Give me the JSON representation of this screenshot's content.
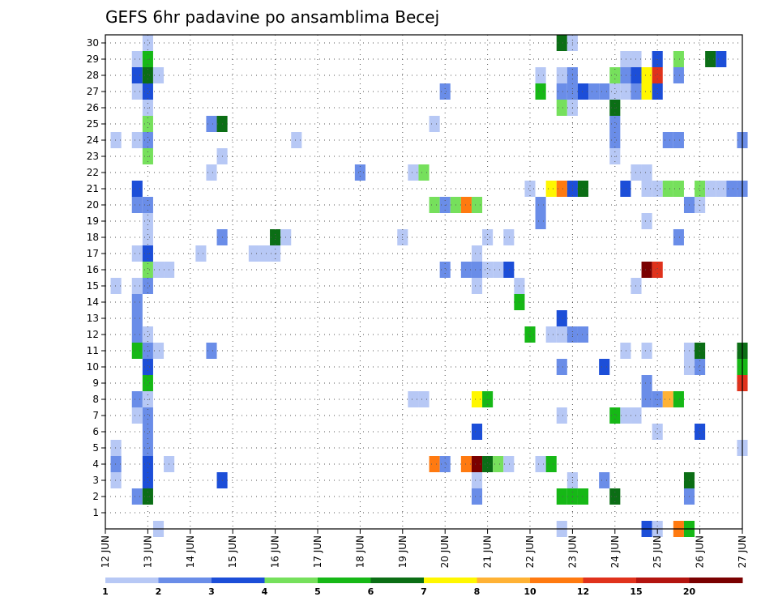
{
  "chart_data": {
    "type": "heatmap",
    "title": "GEFS 6hr padavine po ansamblima Becej",
    "xlabel": "",
    "ylabel": "",
    "x_ticks": [
      "12 JUN",
      "13 JUN",
      "14 JUN",
      "15 JUN",
      "16 JUN",
      "17 JUN",
      "18 JUN",
      "19 JUN",
      "20 JUN",
      "21 JUN",
      "22 JUN",
      "23 JUN",
      "24 JUN",
      "25 JUN",
      "26 JUN",
      "27 JUN"
    ],
    "x_range_days": [
      12,
      27
    ],
    "y_ticks": [
      1,
      2,
      3,
      4,
      5,
      6,
      7,
      8,
      9,
      10,
      11,
      12,
      13,
      14,
      15,
      16,
      17,
      18,
      19,
      20,
      21,
      22,
      23,
      24,
      25,
      26,
      27,
      28,
      29,
      30
    ],
    "y_range": [
      0,
      30
    ],
    "grid": true,
    "colorbar": {
      "labels": [
        "1",
        "2",
        "3",
        "4",
        "5",
        "6",
        "7",
        "8",
        "10",
        "12",
        "15",
        "20"
      ],
      "colors": [
        "#b7c8f5",
        "#6a8de8",
        "#1c4ed8",
        "#76e05c",
        "#16b816",
        "#0b6e15",
        "#fff700",
        "#ffb235",
        "#ff7a10",
        "#e0321c",
        "#b3140f",
        "#7a0000"
      ]
    },
    "note_values": "cell value = colorbar class index 0-11 (0 = 1-2 mm ... 11 = >20 mm); x = day of June (6-hourly steps), y = ensemble member",
    "cells": [
      [
        13.25,
        0,
        0
      ],
      [
        22.75,
        0,
        0
      ],
      [
        24.75,
        0,
        2
      ],
      [
        25.0,
        0,
        0
      ],
      [
        25.5,
        0,
        8
      ],
      [
        25.75,
        0,
        4
      ],
      [
        12.75,
        2,
        1
      ],
      [
        13.0,
        2,
        5
      ],
      [
        20.75,
        2,
        1
      ],
      [
        22.75,
        2,
        4
      ],
      [
        23.0,
        2,
        4
      ],
      [
        23.25,
        2,
        4
      ],
      [
        24.0,
        2,
        5
      ],
      [
        25.75,
        2,
        1
      ],
      [
        12.25,
        3,
        0
      ],
      [
        13.0,
        3,
        2
      ],
      [
        14.75,
        3,
        2
      ],
      [
        20.75,
        3,
        0
      ],
      [
        23.0,
        3,
        0
      ],
      [
        23.75,
        3,
        1
      ],
      [
        25.75,
        3,
        5
      ],
      [
        12.25,
        4,
        1
      ],
      [
        13.0,
        4,
        2
      ],
      [
        13.5,
        4,
        0
      ],
      [
        19.75,
        4,
        8
      ],
      [
        20.0,
        4,
        1
      ],
      [
        20.5,
        4,
        8
      ],
      [
        20.75,
        4,
        11
      ],
      [
        21.0,
        4,
        5
      ],
      [
        21.25,
        4,
        3
      ],
      [
        21.5,
        4,
        0
      ],
      [
        22.25,
        4,
        0
      ],
      [
        22.5,
        4,
        4
      ],
      [
        12.25,
        5,
        0
      ],
      [
        13.0,
        5,
        1
      ],
      [
        27.0,
        5,
        0
      ],
      [
        13.0,
        6,
        1
      ],
      [
        20.75,
        6,
        2
      ],
      [
        25.0,
        6,
        0
      ],
      [
        26.0,
        6,
        2
      ],
      [
        12.75,
        7,
        0
      ],
      [
        13.0,
        7,
        1
      ],
      [
        22.75,
        7,
        0
      ],
      [
        24.0,
        7,
        4
      ],
      [
        24.25,
        7,
        0
      ],
      [
        24.5,
        7,
        0
      ],
      [
        12.75,
        8,
        1
      ],
      [
        13.0,
        8,
        0
      ],
      [
        19.25,
        8,
        0
      ],
      [
        19.5,
        8,
        0
      ],
      [
        20.75,
        8,
        6
      ],
      [
        21.0,
        8,
        4
      ],
      [
        24.75,
        8,
        1
      ],
      [
        25.0,
        8,
        1
      ],
      [
        25.25,
        8,
        7
      ],
      [
        25.5,
        8,
        4
      ],
      [
        13.0,
        9,
        4
      ],
      [
        24.75,
        9,
        1
      ],
      [
        27.0,
        9,
        9
      ],
      [
        13.0,
        10,
        2
      ],
      [
        22.75,
        10,
        1
      ],
      [
        23.75,
        10,
        2
      ],
      [
        25.75,
        10,
        0
      ],
      [
        26.0,
        10,
        1
      ],
      [
        27.0,
        10,
        4
      ],
      [
        12.75,
        11,
        4
      ],
      [
        13.0,
        11,
        1
      ],
      [
        13.25,
        11,
        0
      ],
      [
        14.5,
        11,
        1
      ],
      [
        24.25,
        11,
        0
      ],
      [
        24.75,
        11,
        0
      ],
      [
        25.75,
        11,
        0
      ],
      [
        26.0,
        11,
        5
      ],
      [
        27.0,
        11,
        5
      ],
      [
        12.75,
        12,
        1
      ],
      [
        13.0,
        12,
        0
      ],
      [
        22.0,
        12,
        4
      ],
      [
        22.5,
        12,
        0
      ],
      [
        22.75,
        12,
        0
      ],
      [
        23.0,
        12,
        1
      ],
      [
        23.25,
        12,
        1
      ],
      [
        12.75,
        13,
        1
      ],
      [
        22.75,
        13,
        2
      ],
      [
        12.75,
        14,
        1
      ],
      [
        21.75,
        14,
        4
      ],
      [
        12.25,
        15,
        0
      ],
      [
        12.75,
        15,
        0
      ],
      [
        13.0,
        15,
        1
      ],
      [
        20.75,
        15,
        0
      ],
      [
        21.75,
        15,
        0
      ],
      [
        24.5,
        15,
        0
      ],
      [
        13.0,
        16,
        3
      ],
      [
        13.25,
        16,
        0
      ],
      [
        13.5,
        16,
        0
      ],
      [
        20.0,
        16,
        1
      ],
      [
        20.5,
        16,
        1
      ],
      [
        20.75,
        16,
        1
      ],
      [
        21.0,
        16,
        0
      ],
      [
        21.25,
        16,
        0
      ],
      [
        21.5,
        16,
        2
      ],
      [
        24.75,
        16,
        11
      ],
      [
        25.0,
        16,
        9
      ],
      [
        12.75,
        17,
        0
      ],
      [
        13.0,
        17,
        2
      ],
      [
        14.25,
        17,
        0
      ],
      [
        15.5,
        17,
        0
      ],
      [
        15.75,
        17,
        0
      ],
      [
        16.0,
        17,
        0
      ],
      [
        20.75,
        17,
        0
      ],
      [
        13.0,
        18,
        0
      ],
      [
        14.75,
        18,
        1
      ],
      [
        16.0,
        18,
        5
      ],
      [
        16.25,
        18,
        0
      ],
      [
        19.0,
        18,
        0
      ],
      [
        21.0,
        18,
        0
      ],
      [
        21.5,
        18,
        0
      ],
      [
        25.5,
        18,
        1
      ],
      [
        13.0,
        19,
        0
      ],
      [
        22.25,
        19,
        1
      ],
      [
        24.75,
        19,
        0
      ],
      [
        12.75,
        20,
        1
      ],
      [
        13.0,
        20,
        1
      ],
      [
        19.75,
        20,
        3
      ],
      [
        20.0,
        20,
        1
      ],
      [
        20.25,
        20,
        3
      ],
      [
        20.5,
        20,
        8
      ],
      [
        20.75,
        20,
        3
      ],
      [
        22.25,
        20,
        1
      ],
      [
        25.75,
        20,
        1
      ],
      [
        26.0,
        20,
        0
      ],
      [
        12.75,
        21,
        2
      ],
      [
        22.0,
        21,
        0
      ],
      [
        22.5,
        21,
        6
      ],
      [
        22.75,
        21,
        8
      ],
      [
        23.0,
        21,
        2
      ],
      [
        23.25,
        21,
        5
      ],
      [
        24.25,
        21,
        2
      ],
      [
        24.75,
        21,
        0
      ],
      [
        25.0,
        21,
        0
      ],
      [
        25.25,
        21,
        3
      ],
      [
        25.5,
        21,
        3
      ],
      [
        26.0,
        21,
        3
      ],
      [
        26.25,
        21,
        0
      ],
      [
        26.5,
        21,
        0
      ],
      [
        26.75,
        21,
        1
      ],
      [
        27.0,
        21,
        1
      ],
      [
        14.5,
        22,
        0
      ],
      [
        18.0,
        22,
        1
      ],
      [
        19.25,
        22,
        0
      ],
      [
        19.5,
        22,
        3
      ],
      [
        24.5,
        22,
        0
      ],
      [
        24.75,
        22,
        0
      ],
      [
        13.0,
        23,
        3
      ],
      [
        14.75,
        23,
        0
      ],
      [
        24.0,
        23,
        0
      ],
      [
        12.25,
        24,
        0
      ],
      [
        12.75,
        24,
        0
      ],
      [
        13.0,
        24,
        1
      ],
      [
        16.5,
        24,
        0
      ],
      [
        24.0,
        24,
        1
      ],
      [
        25.25,
        24,
        1
      ],
      [
        25.5,
        24,
        1
      ],
      [
        27.0,
        24,
        1
      ],
      [
        13.0,
        25,
        3
      ],
      [
        14.5,
        25,
        1
      ],
      [
        14.75,
        25,
        5
      ],
      [
        19.75,
        25,
        0
      ],
      [
        24.0,
        25,
        1
      ],
      [
        13.0,
        26,
        0
      ],
      [
        22.75,
        26,
        3
      ],
      [
        23.0,
        26,
        0
      ],
      [
        24.0,
        26,
        5
      ],
      [
        12.75,
        27,
        0
      ],
      [
        13.0,
        27,
        2
      ],
      [
        20.0,
        27,
        1
      ],
      [
        22.25,
        27,
        4
      ],
      [
        22.75,
        27,
        1
      ],
      [
        23.0,
        27,
        1
      ],
      [
        23.25,
        27,
        2
      ],
      [
        23.5,
        27,
        1
      ],
      [
        23.75,
        27,
        1
      ],
      [
        24.0,
        27,
        0
      ],
      [
        24.25,
        27,
        0
      ],
      [
        24.5,
        27,
        1
      ],
      [
        24.75,
        27,
        6
      ],
      [
        25.0,
        27,
        2
      ],
      [
        12.75,
        28,
        2
      ],
      [
        13.0,
        28,
        5
      ],
      [
        13.25,
        28,
        0
      ],
      [
        22.25,
        28,
        0
      ],
      [
        22.75,
        28,
        0
      ],
      [
        23.0,
        28,
        1
      ],
      [
        24.0,
        28,
        3
      ],
      [
        24.25,
        28,
        1
      ],
      [
        24.5,
        28,
        2
      ],
      [
        24.75,
        28,
        6
      ],
      [
        25.0,
        28,
        9
      ],
      [
        25.5,
        28,
        1
      ],
      [
        12.75,
        29,
        0
      ],
      [
        13.0,
        29,
        4
      ],
      [
        24.25,
        29,
        0
      ],
      [
        24.5,
        29,
        0
      ],
      [
        25.0,
        29,
        2
      ],
      [
        25.5,
        29,
        3
      ],
      [
        26.25,
        29,
        5
      ],
      [
        26.5,
        29,
        2
      ],
      [
        13.0,
        30,
        0
      ],
      [
        22.75,
        30,
        5
      ],
      [
        23.0,
        30,
        0
      ]
    ]
  }
}
